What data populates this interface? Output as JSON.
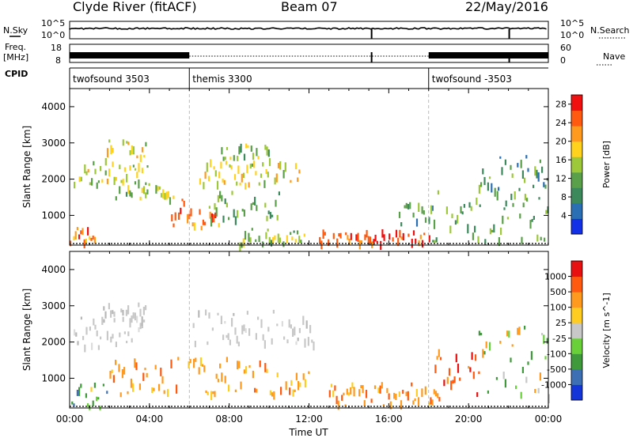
{
  "header": {
    "station": "Clyde River (fitACF)",
    "beam": "Beam 07",
    "date": "22/May/2016"
  },
  "strip": {
    "nsky_label": "N.Sky",
    "nsearch_label": "N.Search",
    "freq_label_1": "Freq.",
    "freq_label_2": "[MHz]",
    "nave_label": "Nave",
    "cpid_label": "CPID",
    "nsky_ticks": [
      "10^5",
      "10^0"
    ],
    "nsearch_ticks": [
      "10^5",
      "10^0"
    ],
    "freq_ticks": [
      "18",
      "8"
    ],
    "nave_ticks": [
      "60",
      "0"
    ]
  },
  "cpid_segments": [
    {
      "label": "twofsound 3503",
      "start_hour": 0
    },
    {
      "label": "themis 3300",
      "start_hour": 6
    },
    {
      "label": "twofsound -3503",
      "start_hour": 18
    }
  ],
  "chart_data": [
    {
      "type": "heatmap",
      "name": "power",
      "ylabel": "Slant Range [km]",
      "xlabel": "Time UT",
      "xlim": [
        0,
        24
      ],
      "ylim": [
        180,
        4500
      ],
      "x_ticks": [
        "00:00",
        "04:00",
        "08:00",
        "12:00",
        "16:00",
        "20:00",
        "00:00"
      ],
      "y_ticks": [
        "1000",
        "2000",
        "3000",
        "4000"
      ],
      "colorbar": {
        "label": "Power [dB]",
        "tick_labels": [
          "4",
          "8",
          "12",
          "16",
          "20",
          "24",
          "28"
        ],
        "range": [
          0,
          30
        ],
        "colors": [
          "#1430e6",
          "#2a6fb4",
          "#3c8a5c",
          "#5aa04a",
          "#9cc83a",
          "#ffd21e",
          "#ff9a1e",
          "#ff5a10",
          "#f01010"
        ]
      },
      "echo_regions": [
        {
          "t": [
            0.2,
            3.9
          ],
          "r": [
            1900,
            2500
          ],
          "dB": 16
        },
        {
          "t": [
            1.6,
            3.8
          ],
          "r": [
            2500,
            3150
          ],
          "dB": 18
        },
        {
          "t": [
            0.0,
            1.3
          ],
          "r": [
            250,
            700
          ],
          "dB": 22
        },
        {
          "t": [
            2.2,
            5.2
          ],
          "r": [
            1500,
            2100
          ],
          "dB": 14
        },
        {
          "t": [
            5.0,
            7.5
          ],
          "r": [
            700,
            1500
          ],
          "dB": 24
        },
        {
          "t": [
            6.5,
            11.5
          ],
          "r": [
            1900,
            2600
          ],
          "dB": 18
        },
        {
          "t": [
            7.5,
            10.0
          ],
          "r": [
            2600,
            3000
          ],
          "dB": 14
        },
        {
          "t": [
            6.8,
            10.5
          ],
          "r": [
            900,
            1700
          ],
          "dB": 12
        },
        {
          "t": [
            8.5,
            11.8
          ],
          "r": [
            250,
            700
          ],
          "dB": 14
        },
        {
          "t": [
            12.5,
            18.2
          ],
          "r": [
            260,
            620
          ],
          "dB": 26
        },
        {
          "t": [
            16.5,
            18.5
          ],
          "r": [
            800,
            1500
          ],
          "dB": 10
        },
        {
          "t": [
            18.0,
            24.0
          ],
          "r": [
            300,
            1700
          ],
          "dB": 12
        },
        {
          "t": [
            20.5,
            24.0
          ],
          "r": [
            1700,
            2700
          ],
          "dB": 10
        }
      ]
    },
    {
      "type": "heatmap",
      "name": "velocity",
      "ylabel": "Slant Range [km]",
      "xlabel": "Time UT",
      "xlim": [
        0,
        24
      ],
      "ylim": [
        180,
        4500
      ],
      "x_ticks": [
        "00:00",
        "04:00",
        "08:00",
        "12:00",
        "16:00",
        "20:00",
        "00:00"
      ],
      "y_ticks": [
        "1000",
        "2000",
        "3000",
        "4000"
      ],
      "colorbar": {
        "label": "Velocity [m s^-1]",
        "tick_labels": [
          "1000",
          "500",
          "100",
          "25",
          "-25",
          "-100",
          "-500",
          "-1000"
        ],
        "colors": [
          "#1436d8",
          "#3c6fb4",
          "#3e9a3a",
          "#6ad03a",
          "#c8c8c8",
          "#ffcc22",
          "#ff9a1e",
          "#ff5a10",
          "#e81010"
        ]
      },
      "echo_regions": [
        {
          "t": [
            0.2,
            3.9
          ],
          "r": [
            1900,
            2700
          ],
          "class": "grey"
        },
        {
          "t": [
            6.0,
            12.5
          ],
          "r": [
            2000,
            2900
          ],
          "class": "grey"
        },
        {
          "t": [
            1.5,
            3.8
          ],
          "r": [
            2700,
            3100
          ],
          "class": "grey"
        },
        {
          "t": [
            2.0,
            12.0
          ],
          "r": [
            600,
            1600
          ],
          "class": "orange"
        },
        {
          "t": [
            13.0,
            18.5
          ],
          "r": [
            250,
            900
          ],
          "class": "orange"
        },
        {
          "t": [
            18.3,
            20.5
          ],
          "r": [
            600,
            1900
          ],
          "class": "orange-red"
        },
        {
          "t": [
            0.0,
            2.0
          ],
          "r": [
            200,
            900
          ],
          "class": "green"
        },
        {
          "t": [
            20.5,
            24.0
          ],
          "r": [
            500,
            2500
          ],
          "class": "green-orange"
        }
      ]
    }
  ]
}
